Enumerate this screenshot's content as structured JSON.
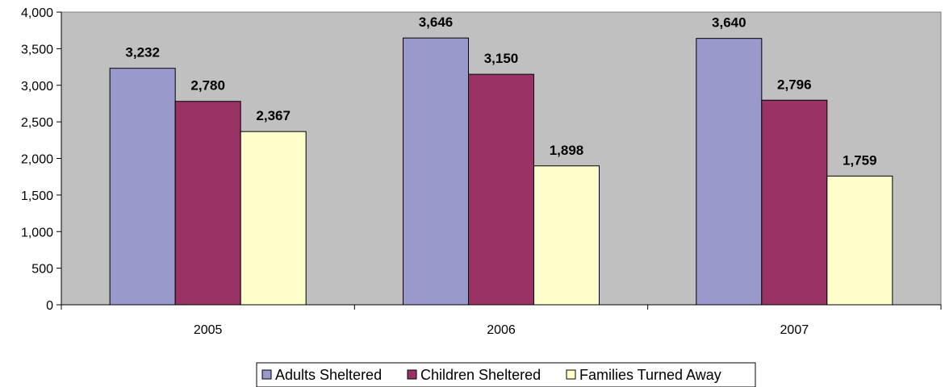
{
  "chart_data": {
    "type": "bar",
    "title": "",
    "xlabel": "",
    "ylabel": "",
    "categories": [
      "2005",
      "2006",
      "2007"
    ],
    "series": [
      {
        "name": "Adults Sheltered",
        "values": [
          3232,
          3646,
          3640
        ],
        "color": "#9999cc",
        "labels": [
          "3,232",
          "3,646",
          "3,640"
        ]
      },
      {
        "name": "Children Sheltered",
        "values": [
          2780,
          3150,
          2796
        ],
        "color": "#993366",
        "labels": [
          "2,780",
          "3,150",
          "2,796"
        ]
      },
      {
        "name": "Families Turned Away",
        "values": [
          2367,
          1898,
          1759
        ],
        "color": "#ffffcc",
        "labels": [
          "2,367",
          "1,898",
          "1,759"
        ]
      }
    ],
    "ylim": [
      0,
      4000
    ],
    "yticks": [
      0,
      500,
      1000,
      1500,
      2000,
      2500,
      3000,
      3500,
      4000
    ],
    "ytick_labels": [
      "0",
      "500",
      "1,000",
      "1,500",
      "2,000",
      "2,500",
      "3,000",
      "3,500",
      "4,000"
    ],
    "plot_background": "#c0c0c0",
    "grid": false,
    "legend_position": "bottom-center"
  }
}
